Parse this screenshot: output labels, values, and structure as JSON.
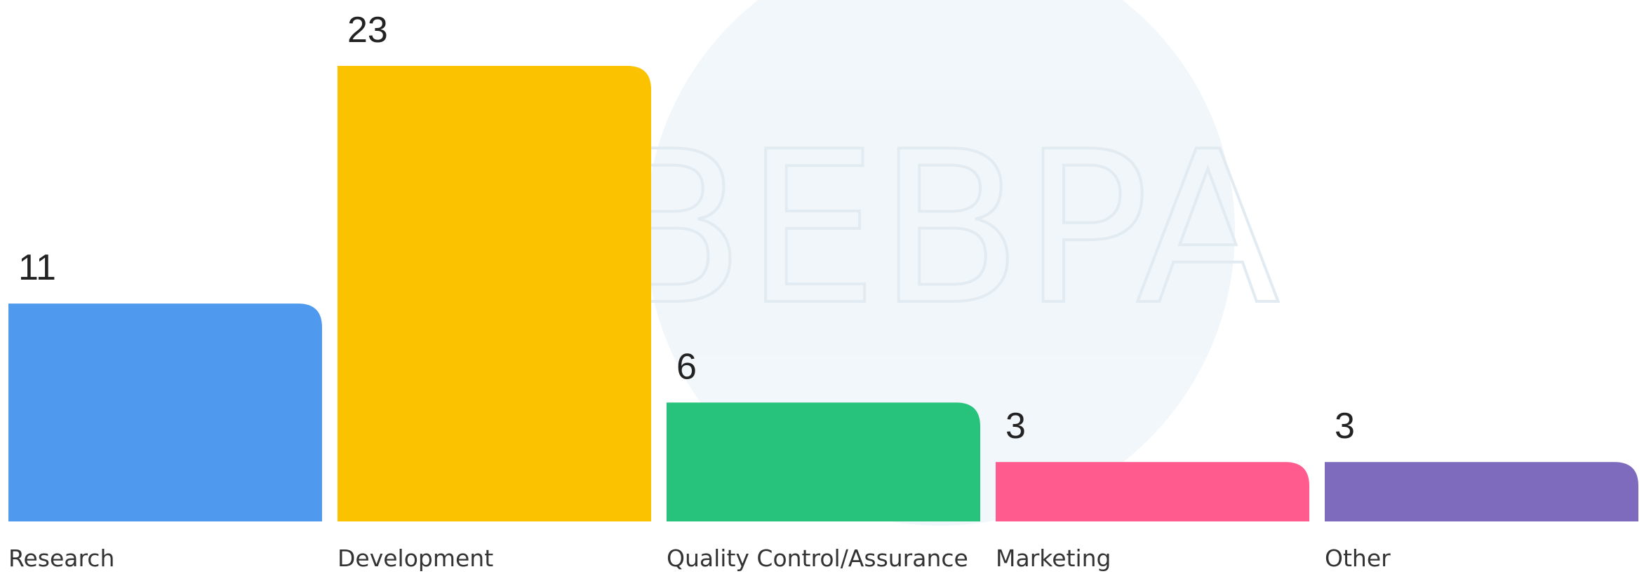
{
  "chart_data": {
    "type": "bar",
    "watermark": "BEBPA",
    "categories": [
      "Research",
      "Development",
      "Quality Control/Assurance",
      "Marketing",
      "Other"
    ],
    "values": [
      11,
      23,
      6,
      3,
      3
    ],
    "colors": [
      "#4f9aee",
      "#fbc200",
      "#27c27b",
      "#ff5b8e",
      "#7e6bbd"
    ]
  }
}
